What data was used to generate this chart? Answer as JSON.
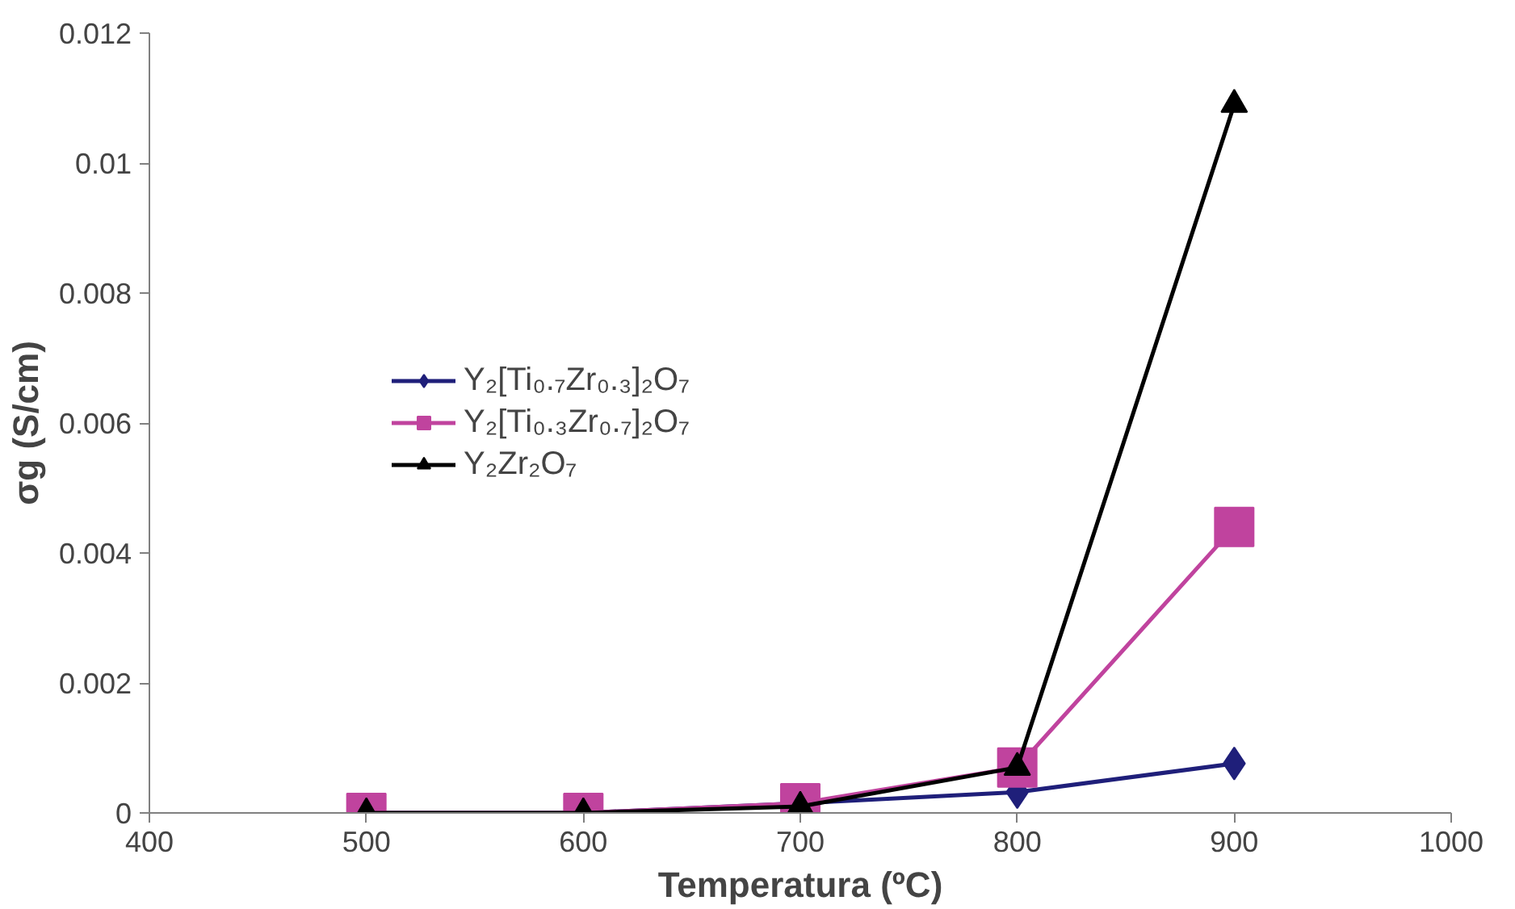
{
  "chart_data": {
    "type": "line",
    "xlabel": "Temperatura (ºC)",
    "ylabel": "σg (S/cm)",
    "x": [
      500,
      600,
      700,
      800,
      900
    ],
    "series": [
      {
        "name": "Y₂[Ti₀.₇Zr₀.₃]₂O₇",
        "color": "#1f1f7a",
        "marker": "diamond",
        "values": [
          0,
          0,
          0.00015,
          0.00032,
          0.00076
        ]
      },
      {
        "name": "Y₂[Ti₀.₃Zr₀.₇]₂O₇",
        "color": "#c0439e",
        "marker": "square",
        "values": [
          0,
          0,
          0.00015,
          0.0007,
          0.0044
        ]
      },
      {
        "name": "Y₂Zr₂O₇",
        "color": "#000000",
        "marker": "triangle",
        "values": [
          0,
          0,
          0.0001,
          0.0007,
          0.0109
        ]
      }
    ],
    "xlim": [
      400,
      1000
    ],
    "xticks": [
      400,
      500,
      600,
      700,
      800,
      900,
      1000
    ],
    "ylim": [
      0,
      0.012
    ],
    "yticks": [
      0,
      0.002,
      0.004,
      0.006,
      0.008,
      0.01,
      0.012
    ],
    "grid": false,
    "legend": "left",
    "line_style": "solid"
  }
}
